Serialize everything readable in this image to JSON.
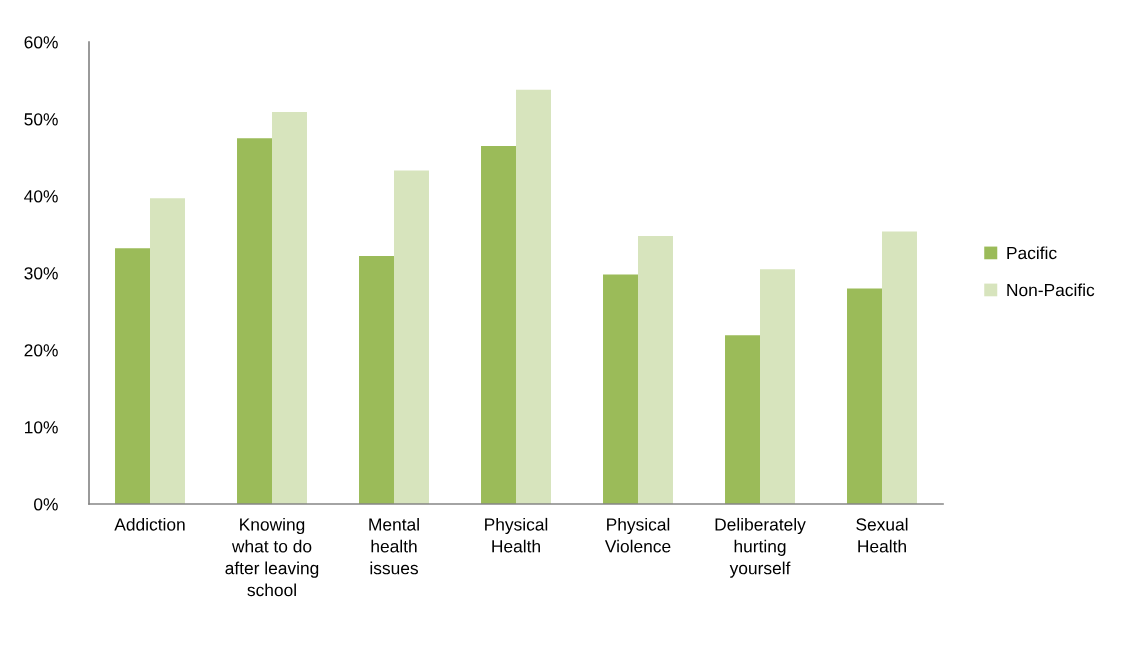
{
  "chart_data": {
    "type": "bar",
    "categories": [
      "Addiction",
      "Knowing\nwhat to do\nafter leaving\nschool",
      "Mental\nhealth\nissues",
      "Physical\nHealth",
      "Physical\nViolence",
      "Deliberately\nhurting\nyourself",
      "Sexual\nHealth"
    ],
    "series": [
      {
        "name": "Pacific",
        "color": "#9bbb59",
        "values": [
          33.2,
          47.5,
          32.2,
          46.5,
          29.8,
          21.9,
          28.0
        ]
      },
      {
        "name": "Non-Pacific",
        "color": "#d7e4bd",
        "values": [
          39.7,
          50.9,
          43.3,
          53.8,
          34.8,
          30.5,
          35.4
        ]
      }
    ],
    "ylim": [
      0,
      60
    ],
    "yticks": [
      {
        "value": 0,
        "label": "0%"
      },
      {
        "value": 10,
        "label": "10%"
      },
      {
        "value": 20,
        "label": "20%"
      },
      {
        "value": 30,
        "label": "30%"
      },
      {
        "value": 40,
        "label": "40%"
      },
      {
        "value": 50,
        "label": "50%"
      },
      {
        "value": 60,
        "label": "60%"
      }
    ],
    "grid": false,
    "legend": "right"
  }
}
